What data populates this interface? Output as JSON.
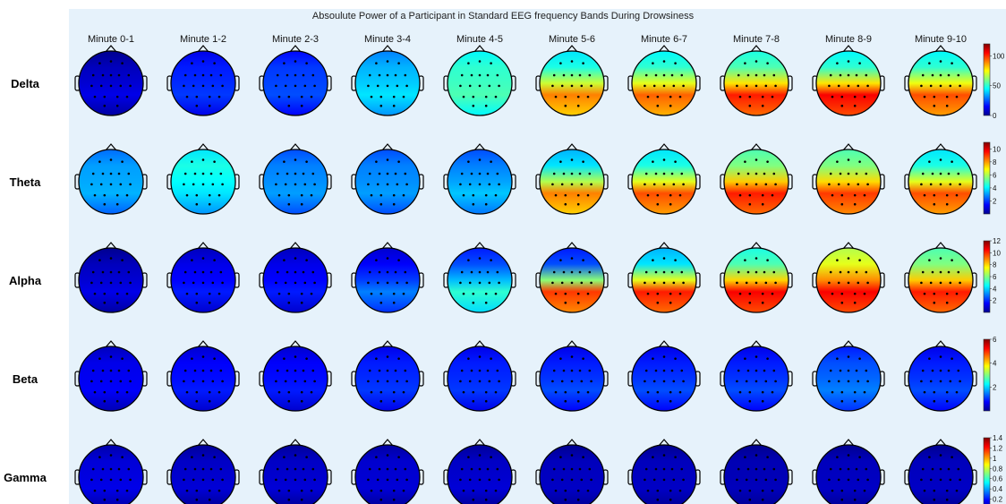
{
  "title": "Absoulute Power of a Participant in Standard EEG frequency Bands During Drowsiness",
  "colors": {
    "figure_background": "#e6f2fb",
    "colormap": [
      "#00008f",
      "#0000ff",
      "#0080ff",
      "#00ffff",
      "#80ff80",
      "#ffff00",
      "#ff8000",
      "#ff0000",
      "#800000"
    ]
  },
  "chart_data": {
    "type": "heatmap",
    "subtype": "eeg-topographic-scalp-maps",
    "title": "Absoulute Power of a Participant in Standard EEG frequency Bands During Drowsiness",
    "columns": [
      "Minute 0-1",
      "Minute 1-2",
      "Minute 2-3",
      "Minute 3-4",
      "Minute 4-5",
      "Minute 5-6",
      "Minute 6-7",
      "Minute 7-8",
      "Minute 8-9",
      "Minute 9-10"
    ],
    "rows": [
      {
        "name": "Delta",
        "colorbar": {
          "range": [
            0,
            120
          ],
          "ticks": [
            "0",
            "50",
            "100"
          ]
        },
        "anterior_level": [
          0.05,
          0.15,
          0.18,
          0.3,
          0.42,
          0.4,
          0.42,
          0.45,
          0.42,
          0.42
        ],
        "posterior_level": [
          0.1,
          0.18,
          0.2,
          0.35,
          0.45,
          0.75,
          0.78,
          0.85,
          0.88,
          0.8
        ]
      },
      {
        "name": "Theta",
        "colorbar": {
          "range": [
            0,
            11
          ],
          "ticks": [
            "2",
            "4",
            "6",
            "8",
            "10"
          ]
        },
        "anterior_level": [
          0.28,
          0.4,
          0.25,
          0.25,
          0.25,
          0.35,
          0.4,
          0.5,
          0.5,
          0.4
        ],
        "posterior_level": [
          0.3,
          0.35,
          0.28,
          0.28,
          0.32,
          0.75,
          0.8,
          0.85,
          0.82,
          0.8
        ]
      },
      {
        "name": "Alpha",
        "colorbar": {
          "range": [
            0,
            12
          ],
          "ticks": [
            "2",
            "4",
            "6",
            "8",
            "10",
            "12"
          ]
        },
        "anterior_level": [
          0.05,
          0.1,
          0.1,
          0.12,
          0.2,
          0.2,
          0.35,
          0.45,
          0.6,
          0.5
        ],
        "posterior_level": [
          0.1,
          0.15,
          0.15,
          0.25,
          0.42,
          0.82,
          0.85,
          0.88,
          0.88,
          0.85
        ]
      },
      {
        "name": "Beta",
        "colorbar": {
          "range": [
            0,
            6
          ],
          "ticks": [
            "2",
            "4",
            "6"
          ]
        },
        "anterior_level": [
          0.1,
          0.12,
          0.12,
          0.15,
          0.15,
          0.15,
          0.15,
          0.15,
          0.2,
          0.15
        ],
        "posterior_level": [
          0.12,
          0.15,
          0.15,
          0.18,
          0.18,
          0.2,
          0.2,
          0.2,
          0.25,
          0.2
        ]
      },
      {
        "name": "Gamma",
        "colorbar": {
          "range": [
            0,
            1.4
          ],
          "ticks": [
            "0.2",
            "0.4",
            "0.6",
            "0.8",
            "1",
            "1.2",
            "1.4"
          ]
        },
        "anterior_level": [
          0.08,
          0.06,
          0.06,
          0.07,
          0.06,
          0.05,
          0.05,
          0.04,
          0.05,
          0.05
        ],
        "posterior_level": [
          0.1,
          0.08,
          0.08,
          0.08,
          0.08,
          0.06,
          0.06,
          0.05,
          0.06,
          0.06
        ]
      }
    ],
    "grid": false
  }
}
